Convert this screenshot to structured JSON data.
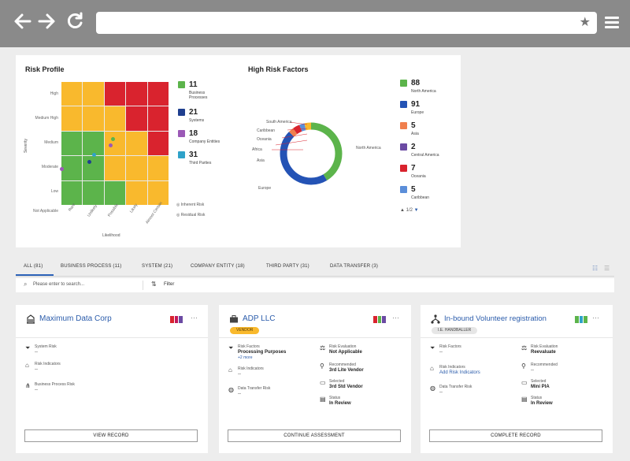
{
  "browser": {
    "url": "",
    "bookmark_icon": "star-icon",
    "menu_icon": "hamburger-icon"
  },
  "risk_profile": {
    "title": "Risk Profile",
    "y_labels": [
      "High",
      "Medium High",
      "Medium",
      "Moderate",
      "Low",
      "Not Applicable"
    ],
    "x_labels": [
      "Rare",
      "Unlikely",
      "Possible",
      "Likely",
      "Almost Certain"
    ],
    "y_axis": "Severity",
    "x_axis": "Likelihood",
    "colors": {
      "green": "#5cb44b",
      "yellow": "#f9b92d",
      "red": "#d9232e"
    },
    "legend": [
      {
        "count": "11",
        "label": "Business Processes",
        "color": "#5cb44b"
      },
      {
        "count": "21",
        "label": "Systems",
        "color": "#1f3f8f"
      },
      {
        "count": "18",
        "label": "Company Entities",
        "color": "#9b59b6"
      },
      {
        "count": "31",
        "label": "Third Parties",
        "color": "#2fa2c9"
      }
    ],
    "inherent_label": "Inherent Risk",
    "residual_label": "Residual Risk"
  },
  "high_risk_factors": {
    "title": "High Risk Factors",
    "donut_labels": [
      "South America",
      "Caribbean",
      "Oceania",
      "Africa",
      "Asia",
      "Europe",
      "North America"
    ],
    "legend": [
      {
        "count": "88",
        "label": "North America",
        "color": "#5cb44b"
      },
      {
        "count": "91",
        "label": "Europe",
        "color": "#2453b5"
      },
      {
        "count": "5",
        "label": "Asia",
        "color": "#f07f4d"
      },
      {
        "count": "2",
        "label": "Central America",
        "color": "#6b4aa3"
      },
      {
        "count": "7",
        "label": "Oceania",
        "color": "#d9232e"
      },
      {
        "count": "5",
        "label": "Caribbean",
        "color": "#5b8ed9"
      }
    ],
    "pagination": "1/2"
  },
  "tabs": [
    {
      "label": "ALL (81)",
      "active": true
    },
    {
      "label": "BUSINESS PROCESS (11)"
    },
    {
      "label": "SYSTEM (21)"
    },
    {
      "label": "COMPANY ENTITY (18)"
    },
    {
      "label": "THIRD PARTY (31)"
    },
    {
      "label": "DATA TRANSFER (3)"
    }
  ],
  "search": {
    "placeholder": "Please enter to search...",
    "filter_label": "Filter"
  },
  "cards": [
    {
      "title": "Maximum Data Corp",
      "icon": "building-icon",
      "fields": [
        {
          "label": "System Risk",
          "value": "--",
          "icon": "funnel-icon"
        },
        {
          "label": "Risk Indicators",
          "value": "--",
          "icon": "tag-icon"
        },
        {
          "label": "Business Process Risk",
          "value": "--",
          "icon": "hierarchy-icon"
        }
      ],
      "button": "VIEW RECORD"
    },
    {
      "title": "ADP LLC",
      "icon": "briefcase-icon",
      "badge": "VENDOR",
      "left_fields": [
        {
          "label": "Risk Factors",
          "value": "Processing Purposes",
          "extra": "+2 more",
          "icon": "funnel-icon"
        },
        {
          "label": "Risk Indicators",
          "value": "--",
          "icon": "tag-icon"
        },
        {
          "label": "Data Transfer Risk",
          "value": "--",
          "icon": "globe-icon"
        }
      ],
      "right_fields": [
        {
          "label": "Risk Evaluation",
          "value": "Not Applicable",
          "icon": "scale-icon"
        },
        {
          "label": "Recommended",
          "value": "3rd Lite Vendor",
          "icon": "pin-icon"
        },
        {
          "label": "Selected",
          "value": "3rd Std Vendor",
          "icon": "doc-icon"
        },
        {
          "label": "Status",
          "value": "In Review",
          "icon": "clipboard-icon"
        }
      ],
      "button": "CONTINUE ASSESSMENT"
    },
    {
      "title": "In-bound Volunteer registration",
      "icon": "hierarchy-icon",
      "badge": "I.E. HANDBALLER",
      "left_fields": [
        {
          "label": "Risk Factors",
          "value": "--",
          "icon": "funnel-icon"
        },
        {
          "label": "Risk Indicators",
          "value": "Add Risk Indicators",
          "icon": "tag-icon"
        },
        {
          "label": "Data Transfer Risk",
          "value": "--",
          "icon": "globe-icon"
        }
      ],
      "right_fields": [
        {
          "label": "Risk Evaluation",
          "value": "Reevaluate",
          "icon": "scale-icon"
        },
        {
          "label": "Recommended",
          "value": "--",
          "icon": "pin-icon"
        },
        {
          "label": "Selected",
          "value": "Mini PIA",
          "icon": "doc-icon"
        },
        {
          "label": "Status",
          "value": "In Review",
          "icon": "clipboard-icon"
        }
      ],
      "button": "COMPLETE RECORD"
    }
  ]
}
